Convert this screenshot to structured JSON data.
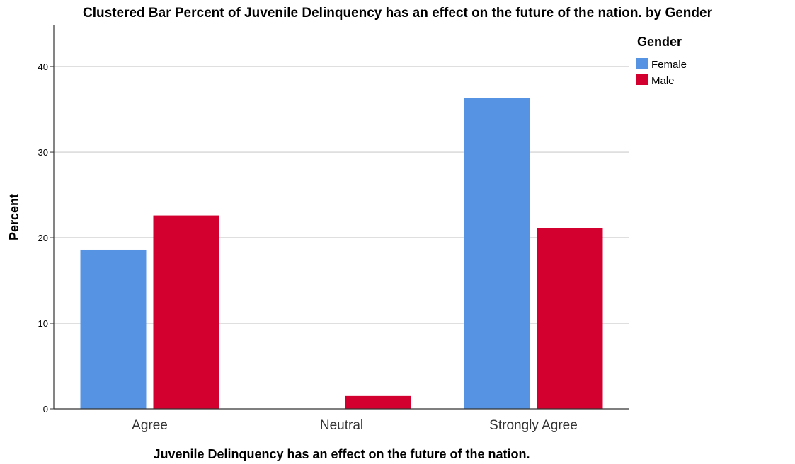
{
  "chart_data": {
    "type": "bar",
    "title": "Clustered Bar Percent of Juvenile Delinquency has an effect on the future of the nation. by Gender",
    "xlabel": "Juvenile Delinquency has an effect on the future of the nation.",
    "ylabel": "Percent",
    "categories": [
      "Agree",
      "Neutral",
      "Strongly Agree"
    ],
    "series": [
      {
        "name": "Female",
        "values": [
          18.6,
          0,
          36.3
        ],
        "color": "#5694e3"
      },
      {
        "name": "Male",
        "values": [
          22.6,
          1.5,
          21.1
        ],
        "color": "#d3002f"
      }
    ],
    "ylim": [
      0,
      44.8
    ],
    "yticks": [
      0,
      10,
      20,
      30,
      40
    ],
    "grid": true,
    "legend": {
      "title": "Gender",
      "position": "right"
    }
  }
}
